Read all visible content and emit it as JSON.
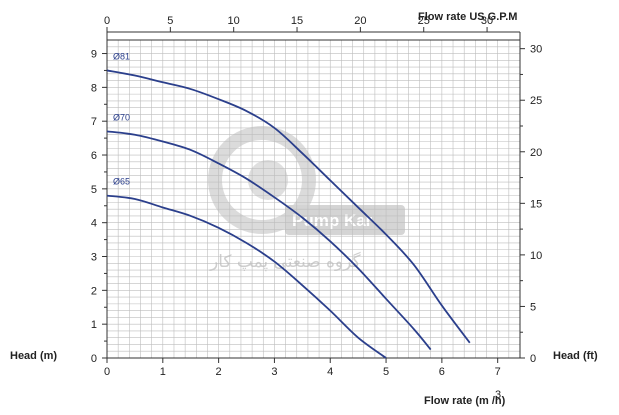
{
  "chart_data": {
    "type": "line",
    "x_bottom": {
      "label": "Flow rate (m /h)",
      "superscript": "3",
      "range": [
        0,
        7.4
      ],
      "ticks": [
        0,
        1,
        2,
        3,
        4,
        5,
        6,
        7
      ]
    },
    "x_top": {
      "label": "Flow rate US  G.P.M",
      "range": [
        0,
        32.6
      ],
      "ticks": [
        0,
        5,
        10,
        15,
        20,
        25,
        30
      ]
    },
    "y_left": {
      "label": "Head (m)",
      "range": [
        0,
        9.4
      ],
      "ticks": [
        0,
        1,
        2,
        3,
        4,
        5,
        6,
        7,
        8,
        9
      ]
    },
    "y_right": {
      "label": "Head (ft)",
      "range": [
        0,
        30.84
      ],
      "ticks": [
        0,
        5,
        10,
        15,
        20,
        25,
        30
      ]
    },
    "grid": true,
    "series": [
      {
        "name": "Ø81",
        "color": "#2b3f8c",
        "x": [
          0,
          0.5,
          1,
          1.5,
          2,
          2.5,
          3,
          3.5,
          4,
          4.5,
          5,
          5.5,
          6,
          6.5
        ],
        "y": [
          8.5,
          8.35,
          8.15,
          7.95,
          7.65,
          7.3,
          6.8,
          6.05,
          5.25,
          4.45,
          3.65,
          2.75,
          1.55,
          0.45
        ]
      },
      {
        "name": "Ø70",
        "color": "#2b3f8c",
        "x": [
          0,
          0.5,
          1,
          1.5,
          2,
          2.5,
          3,
          3.5,
          4,
          4.5,
          5,
          5.5,
          5.8
        ],
        "y": [
          6.7,
          6.6,
          6.4,
          6.15,
          5.75,
          5.3,
          4.75,
          4.15,
          3.45,
          2.65,
          1.75,
          0.85,
          0.25
        ]
      },
      {
        "name": "Ø65",
        "color": "#2b3f8c",
        "x": [
          0,
          0.5,
          1,
          1.5,
          2,
          2.5,
          3,
          3.5,
          4,
          4.5,
          5
        ],
        "y": [
          4.8,
          4.7,
          4.45,
          4.2,
          3.85,
          3.4,
          2.85,
          2.15,
          1.4,
          0.6,
          0
        ]
      }
    ]
  },
  "watermark": {
    "brand": "Pump Kar",
    "fa_text": "گروه صنعتی پمپ کار"
  }
}
